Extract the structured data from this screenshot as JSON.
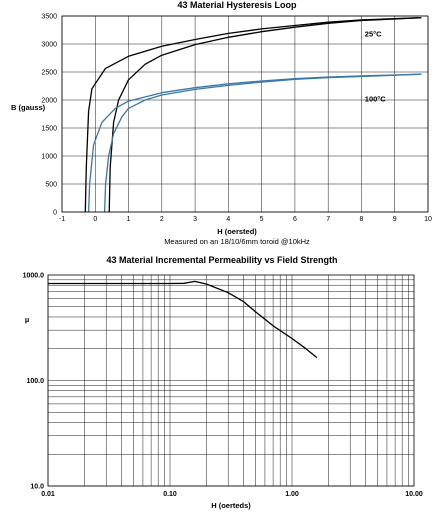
{
  "chart_data": [
    {
      "type": "line",
      "title": "43 Material Hysteresis Loop",
      "xlabel": "H (oersted)",
      "ylabel": "B (gauss)",
      "note": "Measured on an 18/10/6mm toroid @10kHz",
      "xlim": [
        -1,
        10
      ],
      "ylim": [
        0,
        3500
      ],
      "x_ticks": [
        -1,
        0,
        1,
        2,
        3,
        4,
        5,
        6,
        7,
        8,
        9,
        10
      ],
      "y_ticks": [
        0,
        500,
        1000,
        1500,
        2000,
        2500,
        3000,
        3500
      ],
      "grid": "both",
      "annotations": [
        {
          "text": "25°C",
          "x": 8.1,
          "y": 3130
        },
        {
          "text": "100°C",
          "x": 8.1,
          "y": 1970
        }
      ],
      "series": [
        {
          "name": "25°C",
          "color": "#000000",
          "curves": [
            {
              "points": [
                [
                  -0.3,
                  0
                ],
                [
                  -0.27,
                  800
                ],
                [
                  -0.2,
                  1800
                ],
                [
                  -0.1,
                  2200
                ],
                [
                  0.3,
                  2560
                ],
                [
                  1,
                  2780
                ],
                [
                  2,
                  2960
                ],
                [
                  3,
                  3080
                ],
                [
                  4,
                  3190
                ],
                [
                  5,
                  3270
                ],
                [
                  6,
                  3330
                ],
                [
                  7,
                  3390
                ],
                [
                  8,
                  3430
                ],
                [
                  9.8,
                  3470
                ]
              ]
            },
            {
              "points": [
                [
                  0.42,
                  0
                ],
                [
                  0.45,
                  800
                ],
                [
                  0.55,
                  1600
                ],
                [
                  0.7,
                  2000
                ],
                [
                  1,
                  2360
                ],
                [
                  1.5,
                  2640
                ],
                [
                  2,
                  2800
                ],
                [
                  3,
                  2990
                ],
                [
                  4,
                  3120
                ],
                [
                  5,
                  3220
                ],
                [
                  6,
                  3300
                ],
                [
                  7,
                  3370
                ],
                [
                  8,
                  3420
                ],
                [
                  9.8,
                  3470
                ]
              ]
            }
          ]
        },
        {
          "name": "100°C",
          "color": "#3a78a8",
          "curves": [
            {
              "points": [
                [
                  -0.2,
                  0
                ],
                [
                  -0.17,
                  500
                ],
                [
                  -0.05,
                  1200
                ],
                [
                  0.2,
                  1600
                ],
                [
                  0.6,
                  1850
                ],
                [
                  1,
                  1980
                ],
                [
                  2,
                  2130
                ],
                [
                  3,
                  2220
                ],
                [
                  4,
                  2290
                ],
                [
                  5,
                  2340
                ],
                [
                  6,
                  2380
                ],
                [
                  7,
                  2410
                ],
                [
                  8,
                  2430
                ],
                [
                  9.8,
                  2460
                ]
              ]
            },
            {
              "points": [
                [
                  0.28,
                  0
                ],
                [
                  0.31,
                  500
                ],
                [
                  0.4,
                  1000
                ],
                [
                  0.55,
                  1400
                ],
                [
                  0.8,
                  1700
                ],
                [
                  1,
                  1850
                ],
                [
                  1.5,
                  2000
                ],
                [
                  2,
                  2090
                ],
                [
                  3,
                  2190
                ],
                [
                  4,
                  2260
                ],
                [
                  5,
                  2320
                ],
                [
                  6,
                  2370
                ],
                [
                  7,
                  2400
                ],
                [
                  8,
                  2420
                ],
                [
                  9.8,
                  2460
                ]
              ]
            }
          ]
        }
      ]
    },
    {
      "type": "line",
      "title": "43 Material Incremental Permeability vs Field Strength",
      "xlabel": "H (oerteds)",
      "ylabel": "µ",
      "xscale": "log",
      "yscale": "log",
      "xlim": [
        0.01,
        10
      ],
      "ylim": [
        10,
        1000
      ],
      "x_ticks": [
        "0.01",
        "0.10",
        "1.00",
        "10.00"
      ],
      "y_ticks": [
        "10.0",
        "100.0",
        "1000.0"
      ],
      "grid": "both",
      "series": [
        {
          "color": "#000000",
          "x": [
            0.01,
            0.05,
            0.1,
            0.13,
            0.16,
            0.2,
            0.3,
            0.4,
            0.5,
            0.7,
            1.0,
            1.3,
            1.6
          ],
          "y": [
            830,
            830,
            830,
            835,
            870,
            820,
            680,
            560,
            450,
            330,
            250,
            200,
            165
          ]
        }
      ]
    }
  ]
}
